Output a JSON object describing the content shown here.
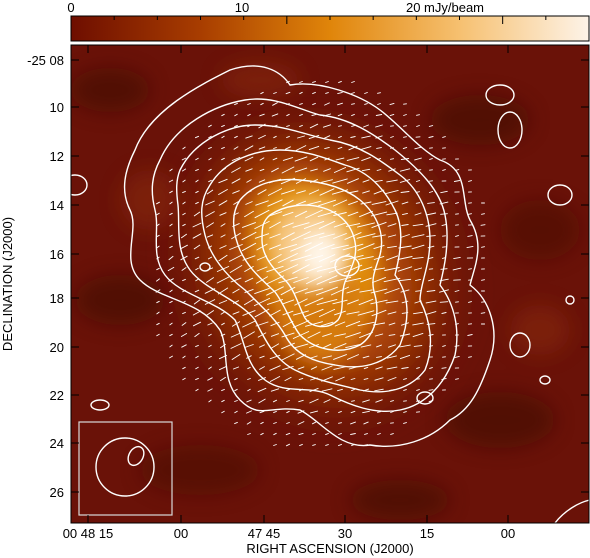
{
  "colorbar": {
    "tick_labels": [
      "0",
      "10",
      "20 mJy/beam"
    ],
    "tick_values": [
      0,
      10,
      20
    ],
    "range": [
      0,
      24
    ],
    "colors": [
      "#6e0e00",
      "#a83d00",
      "#e0850a",
      "#f6c070",
      "#fdf3e8"
    ]
  },
  "axes": {
    "x_title": "RIGHT ASCENSION (J2000)",
    "y_title": "DECLINATION (J2000)",
    "x_ticks": [
      "00 48 15",
      "00",
      "47 45",
      "30",
      "15",
      "00"
    ],
    "y_ticks": [
      "-25 08",
      "10",
      "12",
      "14",
      "16",
      "18",
      "20",
      "22",
      "24",
      "26"
    ]
  },
  "image": {
    "background_color": "#6a1208",
    "core_color": "#fff6ea",
    "contour_color": "#ffffff",
    "vector_color": "#ffffff",
    "beam_box_color": "#d9d9d9"
  }
}
